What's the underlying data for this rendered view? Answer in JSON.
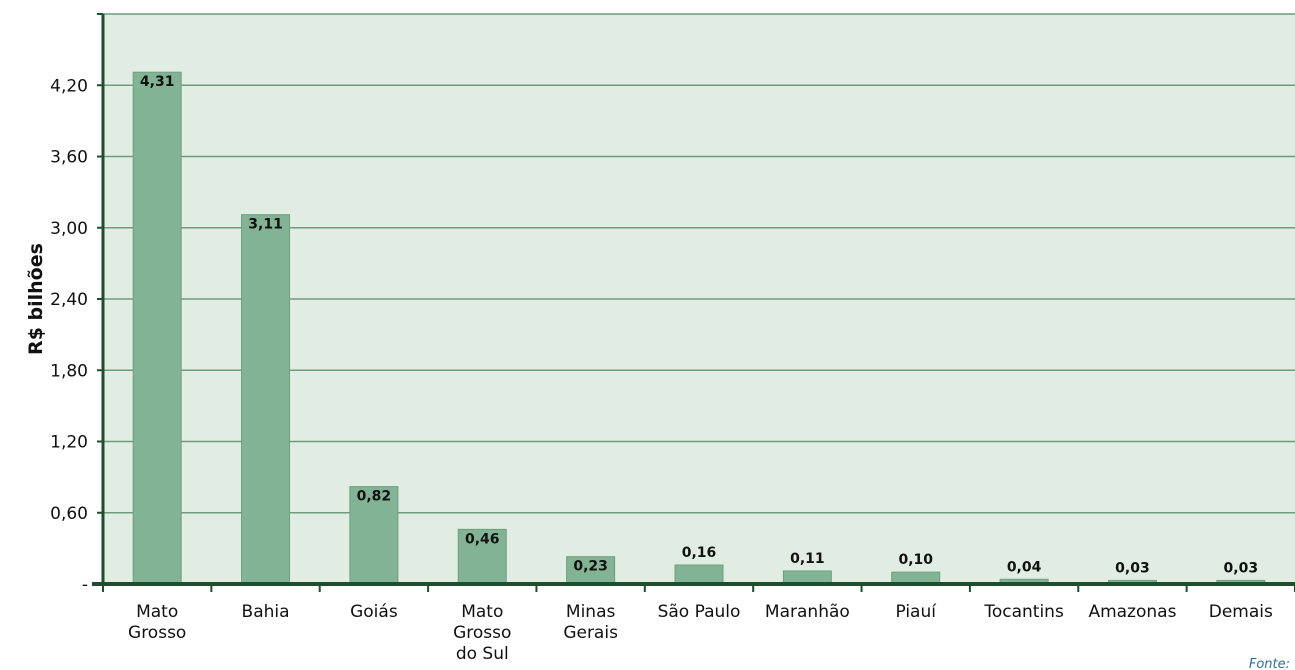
{
  "chart_data": {
    "type": "bar",
    "title": "",
    "xlabel": "",
    "ylabel": "R$ bilhões",
    "categories": [
      [
        "Mato",
        "Grosso"
      ],
      [
        "Bahia"
      ],
      [
        "Goiás"
      ],
      [
        "Mato",
        "Grosso",
        "do Sul"
      ],
      [
        "Minas",
        "Gerais"
      ],
      [
        "São Paulo"
      ],
      [
        "Maranhão"
      ],
      [
        "Piauí"
      ],
      [
        "Tocantins"
      ],
      [
        "Amazonas"
      ],
      [
        "Demais"
      ]
    ],
    "values": [
      4.31,
      3.11,
      0.82,
      0.46,
      0.23,
      0.16,
      0.11,
      0.1,
      0.04,
      0.03,
      0.03
    ],
    "value_labels": [
      "4,31",
      "3,11",
      "0,82",
      "0,46",
      "0,23",
      "0,16",
      "0,11",
      "0,10",
      "0,04",
      "0,03",
      "0,03"
    ],
    "yticks": [
      0,
      0.6,
      1.2,
      1.8,
      2.4,
      3.0,
      3.6,
      4.2
    ],
    "ytick_labels": [
      "-",
      "0,60",
      "1,20",
      "1,80",
      "2,40",
      "3,00",
      "3,60",
      "4,20"
    ],
    "ylim": [
      0,
      4.8
    ],
    "grid": true,
    "colors": {
      "plot_background": "#e1ede2",
      "bar": "#82b394",
      "bar_stroke": "#6e9f80",
      "gridline": "#6f9b7e",
      "axis": "#1f4d2e"
    },
    "source_note": "Fonte:"
  }
}
